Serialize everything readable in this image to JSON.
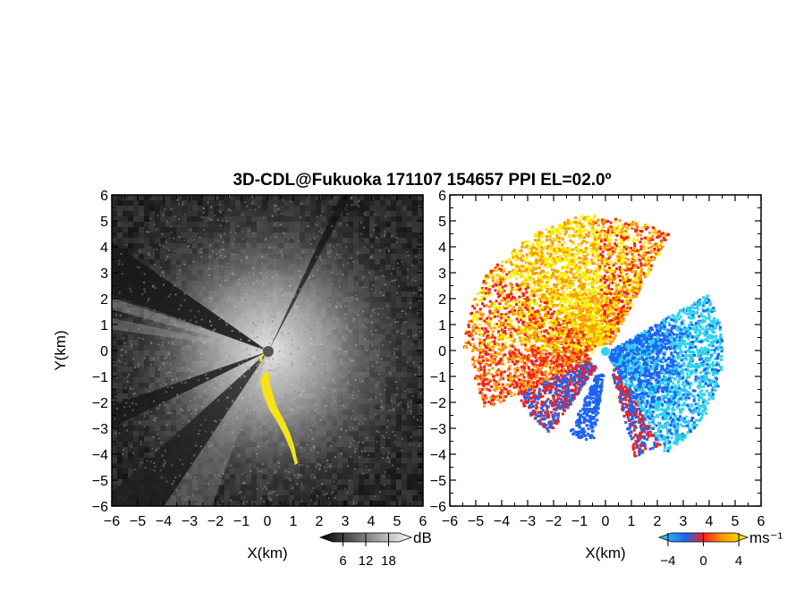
{
  "chart_data": {
    "type": "heatmap",
    "title": "3D-CDL@Fukuoka 171107 154657 PPI EL=02.0º",
    "panels": [
      {
        "id": "reflectivity",
        "xlabel": "X(km)",
        "ylabel": "Y(km)",
        "xlim": [
          -6,
          6
        ],
        "ylim": [
          -6,
          6
        ],
        "x_ticks": [
          "−6",
          "−5",
          "−4",
          "−3",
          "−2",
          "−1",
          "0",
          "1",
          "2",
          "3",
          "4",
          "5",
          "6"
        ],
        "y_ticks": [
          "6",
          "5",
          "4",
          "3",
          "2",
          "1",
          "0",
          "−1",
          "−2",
          "−3",
          "−4",
          "−5",
          "−6"
        ],
        "colormap": "grayscale",
        "highlight_color": "#f5e31a",
        "colorbar": {
          "unit": "dB",
          "tick_labels": [
            "6",
            "12",
            "18"
          ],
          "range": [
            0,
            24
          ]
        }
      },
      {
        "id": "doppler-velocity",
        "xlabel": "X(km)",
        "ylabel": "",
        "xlim": [
          -6,
          6
        ],
        "ylim": [
          -6,
          6
        ],
        "x_ticks": [
          "−6",
          "−5",
          "−4",
          "−3",
          "−2",
          "−1",
          "0",
          "1",
          "2",
          "3",
          "4",
          "5",
          "6"
        ],
        "y_ticks": [
          "6",
          "5",
          "4",
          "3",
          "2",
          "1",
          "0",
          "−1",
          "−2",
          "−3",
          "−4",
          "−5",
          "−6"
        ],
        "colormap": "cyan-blue-red-yellow",
        "colorbar": {
          "unit": "ms⁻¹",
          "tick_labels": [
            "−4",
            "0",
            "4"
          ],
          "range": [
            -5,
            5
          ],
          "colors": [
            "#2fd3ee",
            "#1e64f0",
            "#ee2222",
            "#ff9a00",
            "#f6f100"
          ]
        }
      }
    ]
  }
}
